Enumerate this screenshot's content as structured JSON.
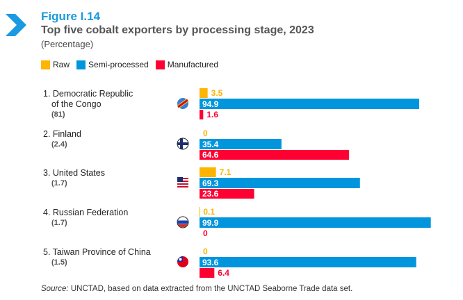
{
  "header": {
    "figure": "Figure I.14",
    "title": "Top five cobalt exporters by processing stage, 2023",
    "subtitle": "(Percentage)"
  },
  "legend": [
    {
      "label": "Raw",
      "color": "#FFB400"
    },
    {
      "label": "Semi-processed",
      "color": "#0095DD"
    },
    {
      "label": "Manufactured",
      "color": "#FF0033"
    }
  ],
  "source_label": "Source:",
  "source_text": " UNCTAD, based on data extracted from the UNCTAD Seaborne Trade data set.",
  "chart_data": {
    "type": "bar",
    "orientation": "horizontal",
    "xlim": [
      0,
      100
    ],
    "title": "Top five cobalt exporters by processing stage, 2023",
    "unit": "Percentage",
    "categories": [
      "1. Democratic Republic of the Congo",
      "2. Finland",
      "3. United States",
      "4. Russian Federation",
      "5. Taiwan Province of China"
    ],
    "category_lines": [
      [
        "1. Democratic Republic",
        "of the Congo"
      ],
      [
        "2. Finland"
      ],
      [
        "3. United States"
      ],
      [
        "4. Russian Federation"
      ],
      [
        "5. Taiwan Province of China"
      ]
    ],
    "shares": [
      "(81)",
      "(2.4)",
      "(1.7)",
      "(1.7)",
      "(1.5)"
    ],
    "flags": [
      "drc-flag-icon",
      "finland-flag-icon",
      "usa-flag-icon",
      "russia-flag-icon",
      "taiwan-flag-icon"
    ],
    "series": [
      {
        "name": "Raw",
        "values": [
          3.5,
          0,
          7.1,
          0.1,
          0
        ]
      },
      {
        "name": "Semi-processed",
        "values": [
          94.9,
          35.4,
          69.3,
          99.9,
          93.6
        ]
      },
      {
        "name": "Manufactured",
        "values": [
          1.6,
          64.6,
          23.6,
          0,
          6.4
        ]
      }
    ]
  }
}
